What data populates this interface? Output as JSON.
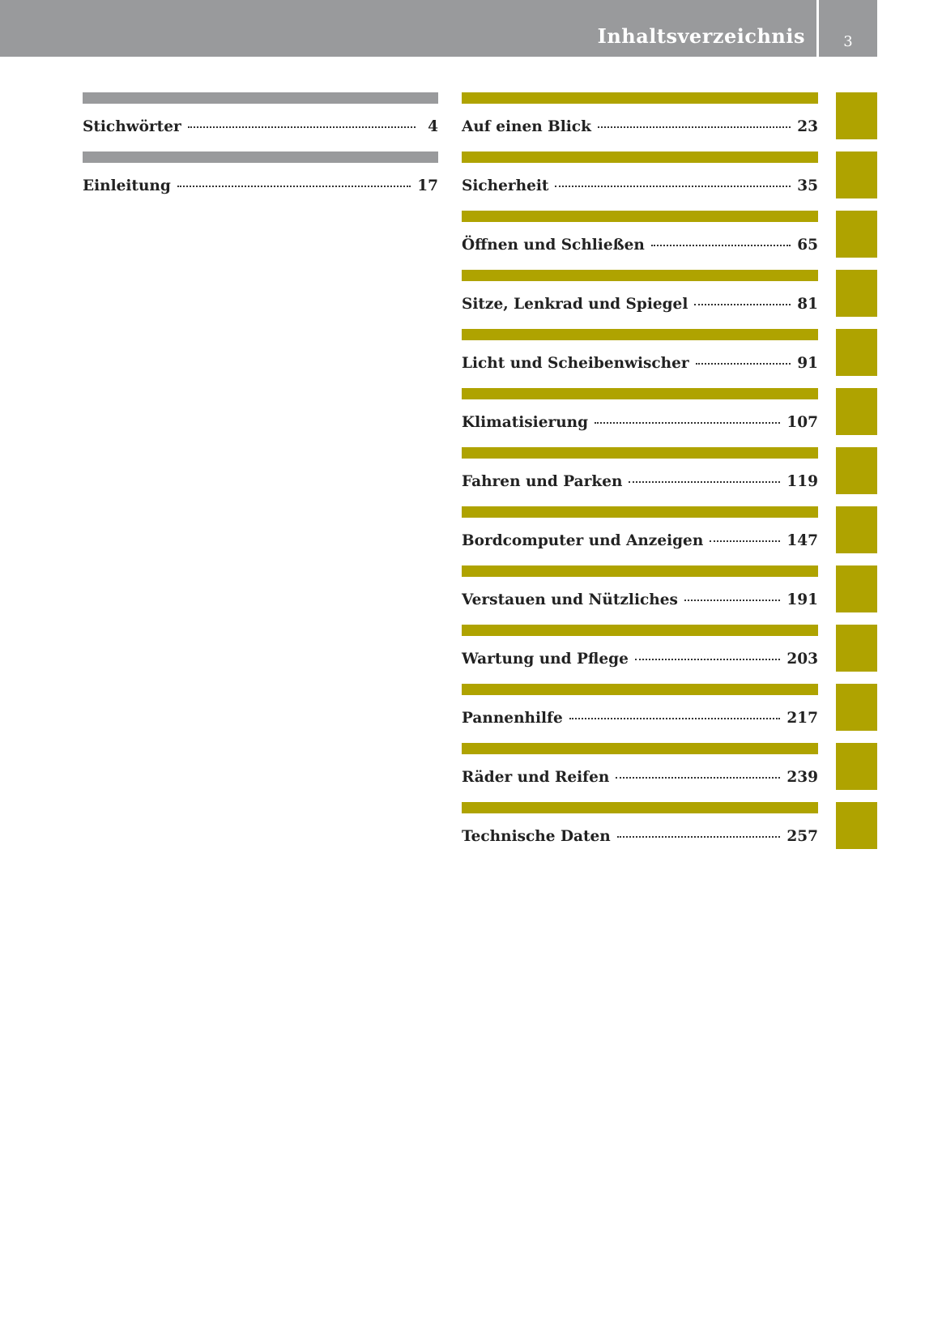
{
  "header": {
    "title": "Inhaltsverzeichnis",
    "page_number": 3
  },
  "left_column": [
    {
      "title": "Stichwörter",
      "page": 4
    },
    {
      "title": "Einleitung",
      "page": 17
    }
  ],
  "right_column": [
    {
      "title": "Auf einen Blick",
      "page": 23
    },
    {
      "title": "Sicherheit",
      "page": 35
    },
    {
      "title": "Öffnen und Schließen",
      "page": 65
    },
    {
      "title": "Sitze, Lenkrad und Spiegel",
      "page": 81
    },
    {
      "title": "Licht und Scheibenwischer",
      "page": 91
    },
    {
      "title": "Klimatisierung",
      "page": 107
    },
    {
      "title": "Fahren und Parken",
      "page": 119
    },
    {
      "title": "Bordcomputer und Anzeigen",
      "page": 147
    },
    {
      "title": "Verstauen und Nützliches",
      "page": 191
    },
    {
      "title": "Wartung und Pflege",
      "page": 203
    },
    {
      "title": "Pannenhilfe",
      "page": 217
    },
    {
      "title": "Räder und Reifen",
      "page": 239
    },
    {
      "title": "Technische Daten",
      "page": 257
    }
  ]
}
